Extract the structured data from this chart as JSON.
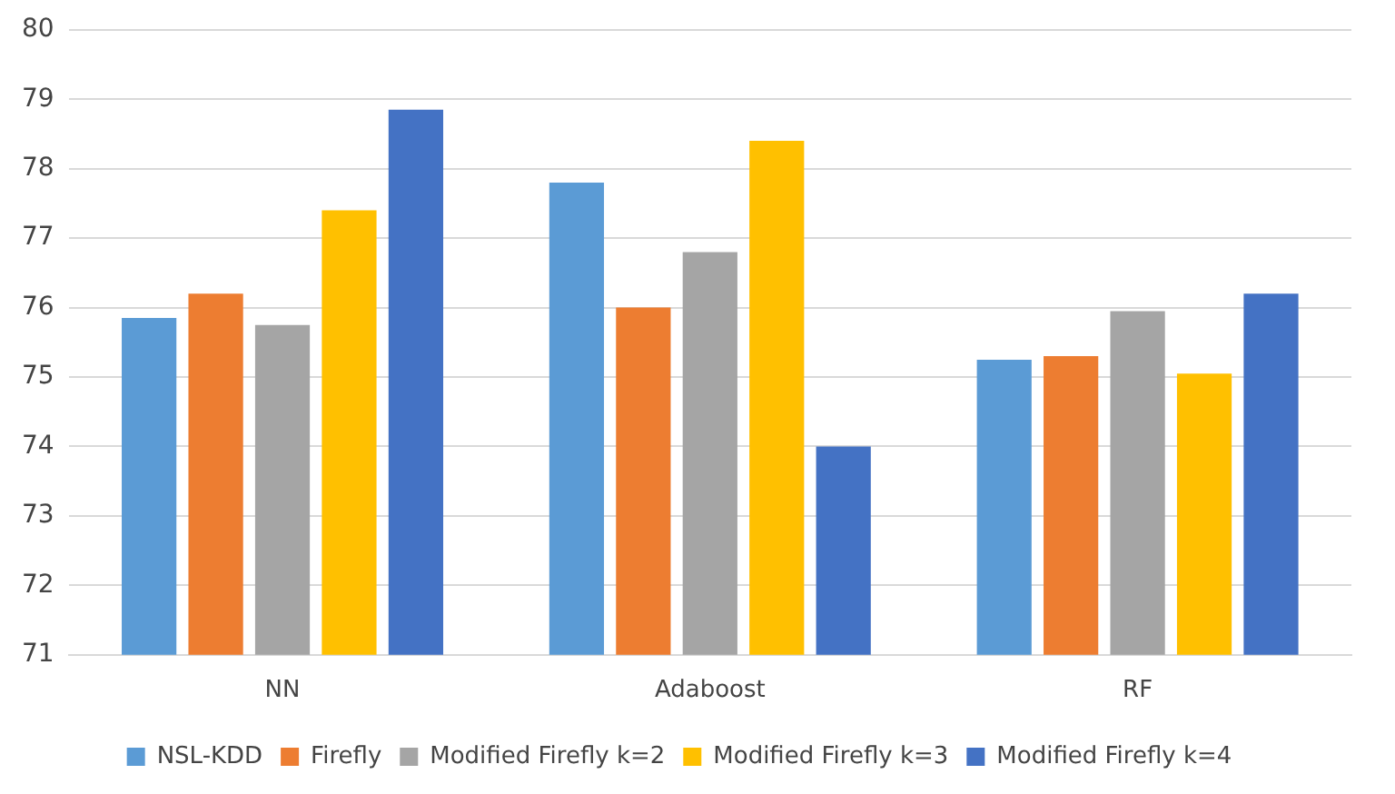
{
  "chart_data": {
    "type": "bar",
    "categories": [
      "NN",
      "Adaboost",
      "RF"
    ],
    "series": [
      {
        "name": "NSL-KDD",
        "color": "#5b9bd5",
        "values": [
          75.85,
          77.8,
          75.25
        ]
      },
      {
        "name": "Firefly",
        "color": "#ed7d31",
        "values": [
          76.2,
          76.0,
          75.3
        ]
      },
      {
        "name": "Modified Firefly k=2",
        "color": "#a5a5a5",
        "values": [
          75.75,
          76.8,
          75.95
        ]
      },
      {
        "name": "Modified Firefly k=3",
        "color": "#ffc000",
        "values": [
          77.4,
          78.4,
          75.05
        ]
      },
      {
        "name": "Modified Firefly k=4",
        "color": "#4472c4",
        "values": [
          78.85,
          74.0,
          76.2
        ]
      }
    ],
    "ylim": [
      71,
      80
    ],
    "yticks": [
      71,
      72,
      73,
      74,
      75,
      76,
      77,
      78,
      79,
      80
    ],
    "grid": "y",
    "legend": "bottom"
  }
}
